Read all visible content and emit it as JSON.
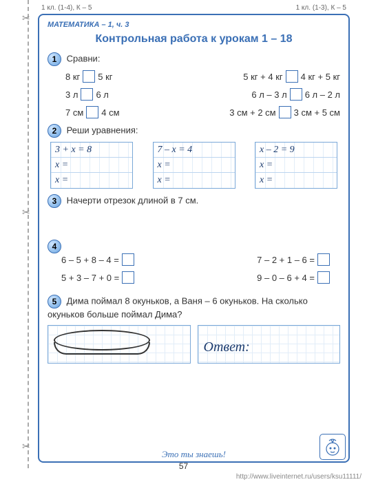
{
  "header": {
    "left": "1 кл. (1-4), К – 5",
    "right": "1 кл. (1-3), К – 5"
  },
  "subject": "МАТЕМАТИКА – 1, ч. 3",
  "title": "Контрольная работа к урокам 1 – 18",
  "task1": {
    "num": "1",
    "label": "Сравни:",
    "rows": [
      {
        "l1": "8 кг",
        "l2": "5 кг",
        "r1": "5 кг + 4 кг",
        "r2": "4 кг + 5 кг"
      },
      {
        "l1": "3 л",
        "l2": "6 л",
        "r1": "6 л – 3 л",
        "r2": "6 л – 2 л"
      },
      {
        "l1": "7 см",
        "l2": "4 см",
        "r1": "3 см + 2 см",
        "r2": "3 см + 5 см"
      }
    ]
  },
  "task2": {
    "num": "2",
    "label": "Реши уравнения:",
    "grids": [
      [
        "3 + x = 8",
        "x =",
        "x ="
      ],
      [
        "7 – x = 4",
        "x =",
        "x ="
      ],
      [
        "x – 2 = 9",
        "x =",
        "x ="
      ]
    ]
  },
  "task3": {
    "num": "3",
    "label": "Начерти отрезок длиной в 7 см."
  },
  "task4": {
    "num": "4",
    "rows": [
      {
        "l": "6 – 5 + 8 – 4 =",
        "r": "7 – 2 + 1 – 6 ="
      },
      {
        "l": "5 + 3 – 7 + 0 =",
        "r": "9 – 0 – 6 + 4 ="
      }
    ]
  },
  "task5": {
    "num": "5",
    "text": "Дима поймал 8 окуньков, а Ваня – 6 окуньков. На сколько окуньков больше поймал Дима?",
    "answer": "Ответ:"
  },
  "footer": "Это ты знаешь!",
  "pagenum": "57",
  "watermark": "http://www.liveinternet.ru/users/ksu11111/",
  "colors": {
    "brand": "#3a6fb5",
    "grid": "#e2edf8",
    "box_border": "#7aa8d8"
  }
}
